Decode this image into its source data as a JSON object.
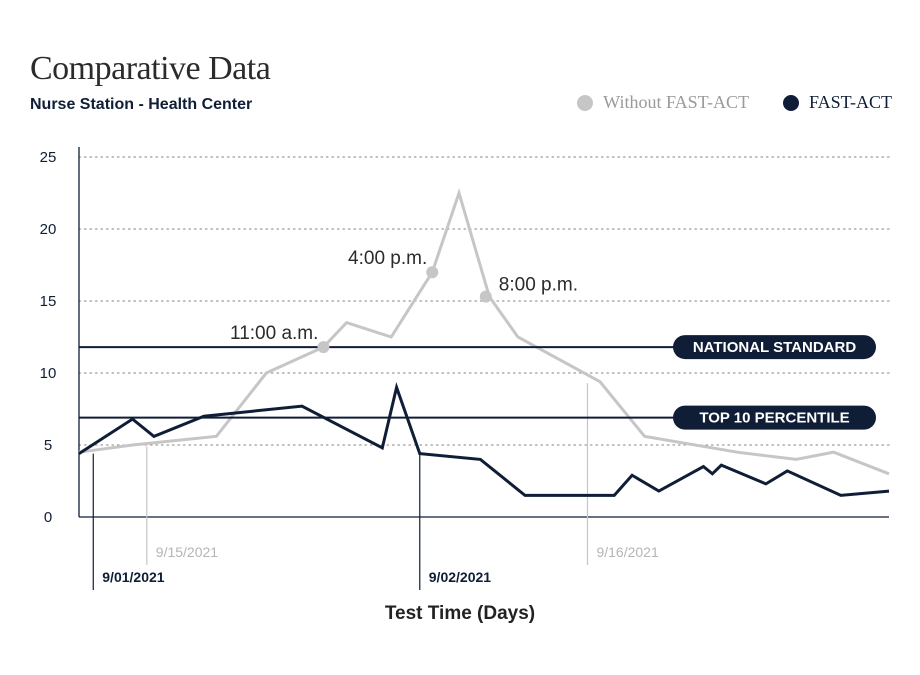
{
  "header": {
    "title": "Comparative Data",
    "subtitle": "Nurse Station - Health Center"
  },
  "legend": {
    "items": [
      {
        "label": "Without FAST-ACT",
        "color": "#c6c6c6"
      },
      {
        "label": "FAST-ACT",
        "color": "#0f1e36"
      }
    ],
    "placement": "top-right"
  },
  "chart_data": {
    "type": "line",
    "title": "Comparative Data",
    "subtitle": "Nurse Station - Health Center",
    "xlabel": "Test Time (Days)",
    "ylabel": "",
    "ylim": [
      0,
      25
    ],
    "yticks": [
      0,
      5,
      10,
      15,
      20,
      25
    ],
    "grid": "dotted horizontal",
    "series": [
      {
        "name": "Without FAST-ACT",
        "color": "#c6c6c6",
        "x": [
          0,
          3,
          7.7,
          10.5,
          13.7,
          15,
          17.5,
          19.8,
          21.3,
          23,
          24.6,
          29.2,
          31.7,
          36.9,
          40.2,
          42.3,
          45.4
        ],
        "y": [
          4.5,
          5.0,
          5.6,
          10.0,
          11.8,
          13.5,
          12.5,
          17.0,
          22.5,
          15.3,
          12.5,
          9.4,
          5.6,
          4.5,
          4.0,
          4.5,
          3.0
        ]
      },
      {
        "name": "FAST-ACT",
        "color": "#0f1e36",
        "x": [
          0,
          3,
          4.2,
          7,
          12.5,
          17,
          17.8,
          19.1,
          22.5,
          25,
          30,
          31,
          32.5,
          35,
          35.5,
          36,
          38.5,
          39.7,
          42.7,
          45.4
        ],
        "y": [
          4.4,
          6.8,
          5.6,
          7.0,
          7.7,
          4.8,
          9.0,
          4.4,
          4.0,
          1.5,
          1.5,
          2.9,
          1.8,
          3.5,
          3.0,
          3.6,
          2.3,
          3.2,
          1.5,
          1.8
        ]
      }
    ],
    "reference_lines": [
      {
        "label": "NATIONAL STANDARD",
        "y": 11.8
      },
      {
        "label": "TOP 10 PERCENTILE",
        "y": 6.9
      }
    ],
    "annotations": [
      {
        "label": "11:00 a.m.",
        "x": 13.7,
        "y": 11.8
      },
      {
        "label": "4:00 p.m.",
        "x": 19.8,
        "y": 17.0
      },
      {
        "label": "8:00 p.m.",
        "x": 22.8,
        "y": 15.3
      }
    ],
    "date_markers": [
      {
        "label": "9/01/2021",
        "x": 0.8,
        "style": "dark"
      },
      {
        "label": "9/15/2021",
        "x": 3.8,
        "style": "light"
      },
      {
        "label": "9/02/2021",
        "x": 19.1,
        "style": "dark"
      },
      {
        "label": "9/16/2021",
        "x": 28.5,
        "style": "light"
      }
    ]
  }
}
